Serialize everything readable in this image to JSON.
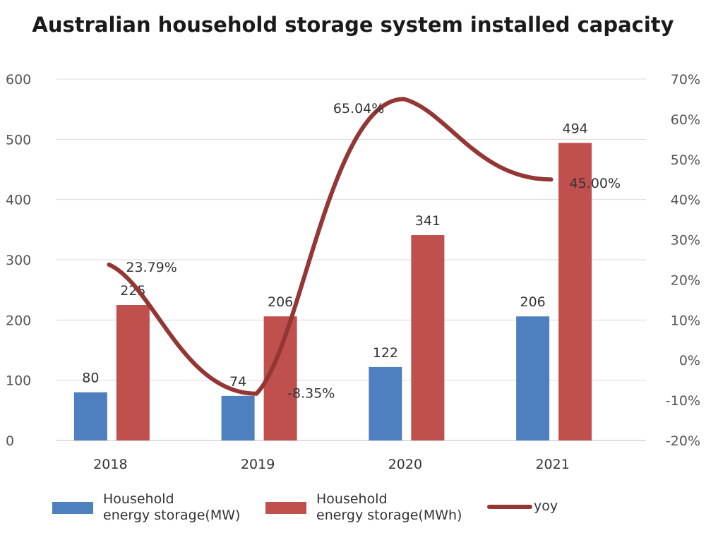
{
  "chart_data": {
    "type": "bar",
    "title": "Australian household storage system installed capacity",
    "categories": [
      "2018",
      "2019",
      "2020",
      "2021"
    ],
    "series": [
      {
        "name": "Household energy storage(MW)",
        "name_lines": [
          "Household",
          "energy storage(MW)"
        ],
        "type": "bar",
        "axis": "left",
        "color": "#4e7fbe",
        "values": [
          80,
          74,
          122,
          206
        ]
      },
      {
        "name": "Household energy storage(MWh)",
        "name_lines": [
          "Household",
          "energy storage(MWh)"
        ],
        "type": "bar",
        "axis": "left",
        "color": "#c0504d",
        "values": [
          225,
          206,
          341,
          494
        ]
      },
      {
        "name": "yoy",
        "type": "line",
        "axis": "right",
        "color": "#943634",
        "values": [
          23.79,
          -8.35,
          65.04,
          45.0
        ],
        "labels": [
          "23.79%",
          "-8.35%",
          "65.04%",
          "45.00%"
        ]
      }
    ],
    "y_left": {
      "min": 0,
      "max": 600,
      "ticks": [
        "0",
        "100",
        "200",
        "300",
        "400",
        "500",
        "600"
      ]
    },
    "y_right": {
      "min": -20,
      "max": 70,
      "ticks": [
        "-20%",
        "-10%",
        "0%",
        "10%",
        "20%",
        "30%",
        "40%",
        "50%",
        "60%",
        "70%"
      ]
    },
    "grid": true,
    "legend_position": "bottom"
  }
}
